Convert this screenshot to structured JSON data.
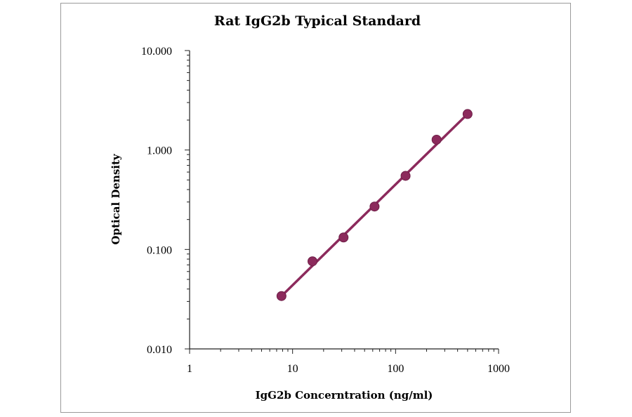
{
  "chart_data": {
    "type": "scatter",
    "title": "Rat IgG2b Typical Standard",
    "xlabel": "IgG2b Concerntration (ng/ml)",
    "ylabel": "Optical Density",
    "x_scale": "log",
    "y_scale": "log",
    "xlim": [
      1,
      1000
    ],
    "ylim": [
      0.01,
      10
    ],
    "x_ticks": [
      "1",
      "10",
      "100",
      "1000"
    ],
    "y_ticks": [
      "0.010",
      "0.100",
      "1.000",
      "10.000"
    ],
    "grid": false,
    "legend": "none",
    "series": [
      {
        "x": [
          7.8,
          15.6,
          31.25,
          62.5,
          125,
          250,
          500
        ],
        "y": [
          0.034,
          0.076,
          0.132,
          0.27,
          0.55,
          1.27,
          2.3
        ],
        "marker_color": "#8c2a5c",
        "fit_line": {
          "x": [
            7.8,
            500
          ],
          "y": [
            0.034,
            2.3
          ]
        }
      }
    ]
  }
}
